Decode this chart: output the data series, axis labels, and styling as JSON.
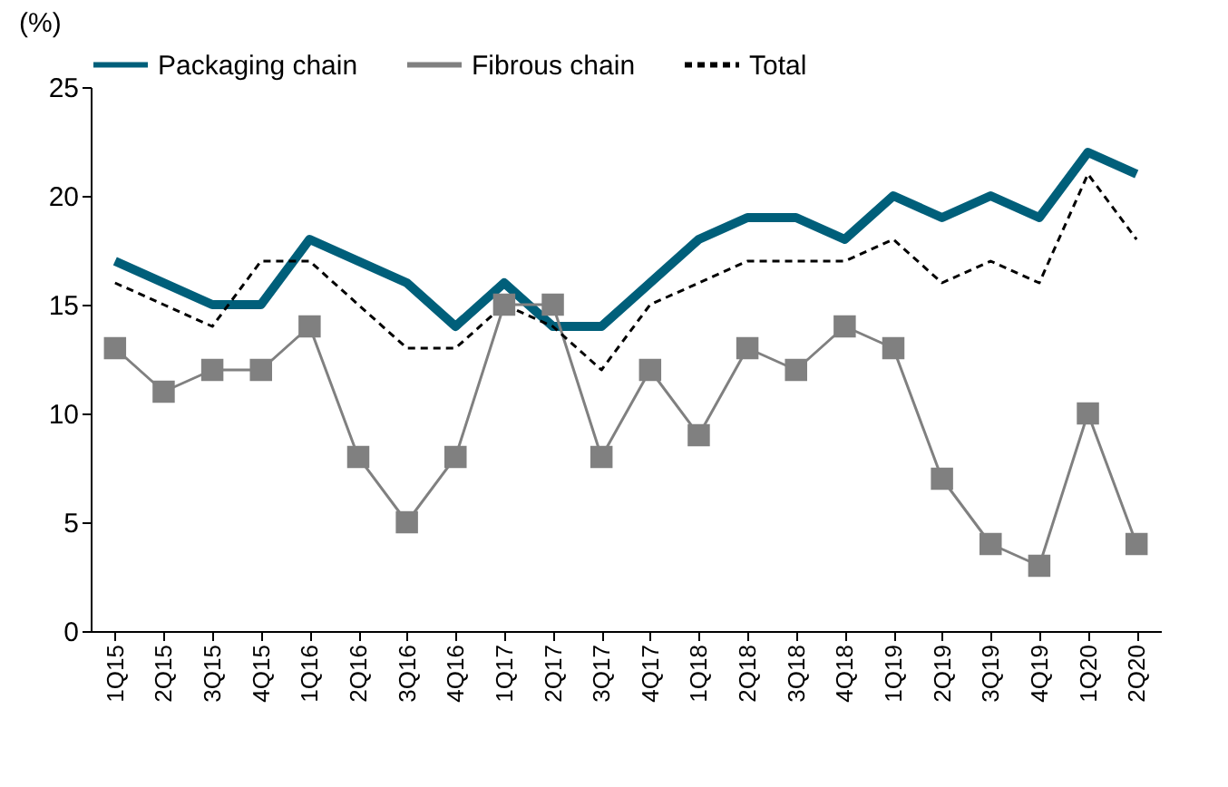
{
  "chart_data": {
    "type": "line",
    "ylabel": "(%)",
    "categories": [
      "1Q15",
      "2Q15",
      "3Q15",
      "4Q15",
      "1Q16",
      "2Q16",
      "3Q16",
      "4Q16",
      "1Q17",
      "2Q17",
      "3Q17",
      "4Q17",
      "1Q18",
      "2Q18",
      "3Q18",
      "4Q18",
      "1Q19",
      "2Q19",
      "3Q19",
      "4Q19",
      "1Q20",
      "2Q20"
    ],
    "series": [
      {
        "name": "Packaging chain",
        "color": "#005f7a",
        "line_style": "solid",
        "marker": "none",
        "values": [
          17,
          16,
          15,
          15,
          18,
          17,
          16,
          14,
          16,
          14,
          14,
          16,
          18,
          19,
          19,
          18,
          20,
          19,
          20,
          19,
          22,
          21
        ]
      },
      {
        "name": "Fibrous chain",
        "color": "#808080",
        "line_style": "solid",
        "marker": "square",
        "values": [
          13,
          11,
          12,
          12,
          14,
          8,
          5,
          8,
          15,
          15,
          8,
          12,
          9,
          13,
          12,
          14,
          13,
          7,
          4,
          3,
          10,
          4
        ]
      },
      {
        "name": "Total",
        "color": "#000000",
        "line_style": "dashed",
        "marker": "none",
        "values": [
          16,
          15,
          14,
          17,
          17,
          15,
          13,
          13,
          15,
          14,
          12,
          15,
          16,
          17,
          17,
          17,
          18,
          16,
          17,
          16,
          21,
          18
        ]
      }
    ],
    "ylim": [
      0,
      25
    ],
    "yticks": [
      0,
      5,
      10,
      15,
      20,
      25
    ],
    "grid": false,
    "legend": "top"
  }
}
